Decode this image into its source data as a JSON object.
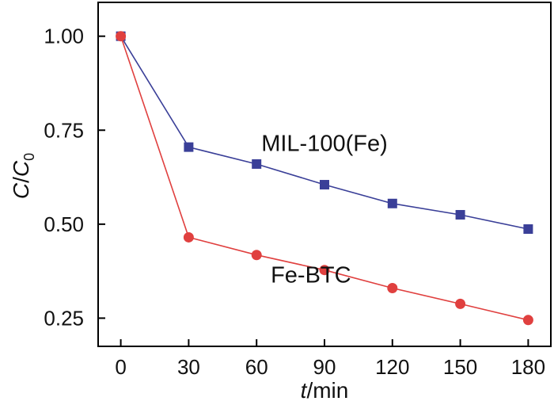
{
  "chart_data": {
    "type": "line",
    "x": [
      0,
      30,
      60,
      90,
      120,
      150,
      180
    ],
    "xlim": [
      -10,
      190
    ],
    "ylim": [
      0.175,
      1.09
    ],
    "xticks": [
      0,
      30,
      60,
      90,
      120,
      150,
      180
    ],
    "yticks": [
      1.0,
      0.75,
      0.5,
      0.25
    ],
    "xtick_labels": [
      "0",
      "30",
      "60",
      "90",
      "120",
      "150",
      "180"
    ],
    "ytick_labels": [
      "1.00",
      "0.75",
      "0.50",
      "0.25"
    ],
    "xlabel": {
      "italic": "t",
      "rest": "/min"
    },
    "ylabel": {
      "c": "C",
      "slash": "/",
      "c0": "C",
      "sub": "0"
    },
    "series": [
      {
        "name": "MIL-100(Fe)",
        "label_anchor": {
          "x": 90,
          "y": 0.695
        },
        "color": "#3a3f98",
        "marker": "square",
        "values": [
          1.0,
          0.705,
          0.66,
          0.605,
          0.555,
          0.525,
          0.487
        ]
      },
      {
        "name": "Fe-BTC",
        "label_anchor": {
          "x": 84,
          "y": 0.345
        },
        "color": "#e0403f",
        "marker": "circle",
        "values": [
          1.0,
          0.465,
          0.418,
          0.378,
          0.33,
          0.288,
          0.245
        ]
      }
    ]
  }
}
